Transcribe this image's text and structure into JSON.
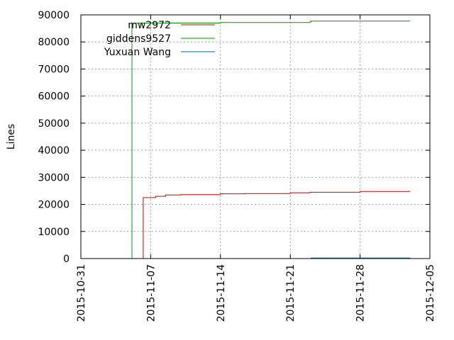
{
  "chart_data": {
    "type": "line",
    "title": "",
    "xlabel": "",
    "ylabel": "Lines",
    "x_is_date": true,
    "xlim": [
      "2015-10-31",
      "2015-12-05"
    ],
    "ylim": [
      0,
      90000
    ],
    "x_ticks": [
      "2015-10-31",
      "2015-11-07",
      "2015-11-14",
      "2015-11-21",
      "2015-11-28",
      "2015-12-05"
    ],
    "y_ticks": [
      0,
      10000,
      20000,
      30000,
      40000,
      50000,
      60000,
      70000,
      80000,
      90000
    ],
    "grid": true,
    "legend_position": "top-left",
    "series": [
      {
        "name": "mw2972",
        "color": "#cc0000",
        "points": [
          [
            "2015-11-05 12:00",
            0
          ],
          [
            "2015-11-06 00:00",
            0
          ],
          [
            "2015-11-06 06:00",
            22500
          ],
          [
            "2015-11-07 12:00",
            23000
          ],
          [
            "2015-11-08 12:00",
            23500
          ],
          [
            "2015-11-10 00:00",
            23600
          ],
          [
            "2015-11-14 00:00",
            23900
          ],
          [
            "2015-11-16 12:00",
            24000
          ],
          [
            "2015-11-21 00:00",
            24300
          ],
          [
            "2015-11-23 00:00",
            24500
          ],
          [
            "2015-11-28 00:00",
            24800
          ],
          [
            "2015-12-03 00:00",
            24900
          ]
        ]
      },
      {
        "name": "giddens9527",
        "color": "#009900",
        "points": [
          [
            "2015-11-05 00:00",
            0
          ],
          [
            "2015-11-05 03:00",
            86900
          ],
          [
            "2015-11-06 00:00",
            87000
          ],
          [
            "2015-11-14 00:00",
            87200
          ],
          [
            "2015-11-23 00:00",
            87500
          ],
          [
            "2015-11-23 02:00",
            87700
          ],
          [
            "2015-12-03 00:00",
            87800
          ]
        ]
      },
      {
        "name": "Yuxuan Wang",
        "color": "#0066bb",
        "points": [
          [
            "2015-11-23 00:00",
            0
          ],
          [
            "2015-11-23 02:00",
            200
          ],
          [
            "2015-12-03 00:00",
            250
          ]
        ]
      }
    ]
  }
}
